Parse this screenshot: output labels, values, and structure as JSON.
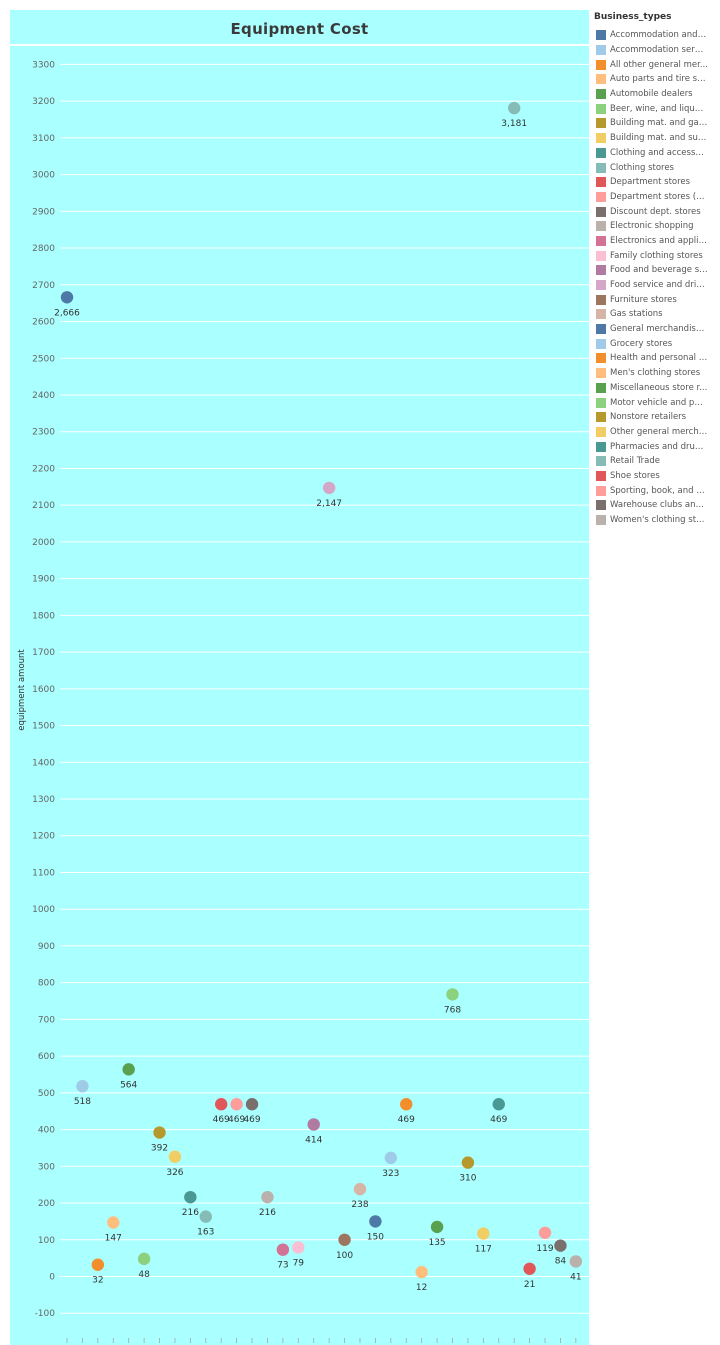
{
  "chart_data": {
    "type": "scatter",
    "title": "Equipment Cost",
    "ylabel": "equipment amount",
    "xlabel": "",
    "ylim": [
      -150,
      3380
    ],
    "yticks": [
      -100,
      0,
      100,
      200,
      300,
      400,
      500,
      600,
      700,
      800,
      900,
      1000,
      1100,
      1200,
      1300,
      1400,
      1500,
      1600,
      1700,
      1800,
      1900,
      2000,
      2100,
      2200,
      2300,
      2400,
      2500,
      2600,
      2700,
      2800,
      2900,
      3000,
      3100,
      3200,
      3300
    ],
    "grid": true,
    "legend_title": "Business_types",
    "legend_position": "right",
    "series": [
      {
        "name": "Accommodation and f...",
        "color": "#4e79a7",
        "value": 2666,
        "label": "2,666"
      },
      {
        "name": "Accommodation servi...",
        "color": "#a0cbe8",
        "value": 518,
        "label": "518"
      },
      {
        "name": "All other general mer...",
        "color": "#f28e2b",
        "value": 32,
        "label": "32"
      },
      {
        "name": "Auto parts and tire st...",
        "color": "#ffbe7d",
        "value": 147,
        "label": "147"
      },
      {
        "name": "Automobile dealers",
        "color": "#59a14f",
        "value": 564,
        "label": "564"
      },
      {
        "name": "Beer, wine, and liquor...",
        "color": "#8cd17d",
        "value": 48,
        "label": "48"
      },
      {
        "name": "Building mat. and gar...",
        "color": "#b6992d",
        "value": 392,
        "label": "392"
      },
      {
        "name": "Building mat. and sup...",
        "color": "#f1ce63",
        "value": 326,
        "label": "326"
      },
      {
        "name": "Clothing and accessor...",
        "color": "#499894",
        "value": 216,
        "label": "216"
      },
      {
        "name": "Clothing stores",
        "color": "#86bcb6",
        "value": 163,
        "label": "163"
      },
      {
        "name": "Department stores",
        "color": "#e15759",
        "value": 469,
        "label": "469"
      },
      {
        "name": "Department stores (e...",
        "color": "#ff9d9a",
        "value": 469,
        "label": "469"
      },
      {
        "name": "Discount dept. stores",
        "color": "#79706e",
        "value": 469,
        "label": "469"
      },
      {
        "name": "Electronic shopping",
        "color": "#bab0ac",
        "value": 216,
        "label": "216"
      },
      {
        "name": "Electronics and applia...",
        "color": "#d37295",
        "value": 73,
        "label": "73"
      },
      {
        "name": "Family clothing stores",
        "color": "#fabfd2",
        "value": 79,
        "label": "79"
      },
      {
        "name": "Food and beverage st...",
        "color": "#b07aa1",
        "value": 414,
        "label": "414"
      },
      {
        "name": "Food service and drin...",
        "color": "#d4a6c8",
        "value": 2147,
        "label": "2,147"
      },
      {
        "name": "Furniture stores",
        "color": "#9d7660",
        "value": 100,
        "label": "100"
      },
      {
        "name": "Gas stations",
        "color": "#d7b5a6",
        "value": 238,
        "label": "238"
      },
      {
        "name": "General merchandise ...",
        "color": "#4e79a7",
        "value": 150,
        "label": "150"
      },
      {
        "name": "Grocery stores",
        "color": "#a0cbe8",
        "value": 323,
        "label": "323"
      },
      {
        "name": "Health and personal c...",
        "color": "#f28e2b",
        "value": 469,
        "label": "469"
      },
      {
        "name": "Men's clothing stores",
        "color": "#ffbe7d",
        "value": 12,
        "label": "12"
      },
      {
        "name": "Miscellaneous store r...",
        "color": "#59a14f",
        "value": 135,
        "label": "135"
      },
      {
        "name": "Motor vehicle and par...",
        "color": "#8cd17d",
        "value": 768,
        "label": "768"
      },
      {
        "name": "Nonstore retailers",
        "color": "#b6992d",
        "value": 310,
        "label": "310"
      },
      {
        "name": "Other general mercha...",
        "color": "#f1ce63",
        "value": 117,
        "label": "117"
      },
      {
        "name": "Pharmacies and drug ...",
        "color": "#499894",
        "value": 469,
        "label": "469"
      },
      {
        "name": "Retail Trade",
        "color": "#86bcb6",
        "value": 3181,
        "label": "3,181"
      },
      {
        "name": "Shoe stores",
        "color": "#e15759",
        "value": 21,
        "label": "21"
      },
      {
        "name": "Sporting, book, and m...",
        "color": "#ff9d9a",
        "value": 119,
        "label": "119"
      },
      {
        "name": "Warehouse clubs and ...",
        "color": "#79706e",
        "value": 84,
        "label": "84"
      },
      {
        "name": "Women's clothing sto...",
        "color": "#bab0ac",
        "value": 41,
        "label": "41"
      }
    ]
  }
}
